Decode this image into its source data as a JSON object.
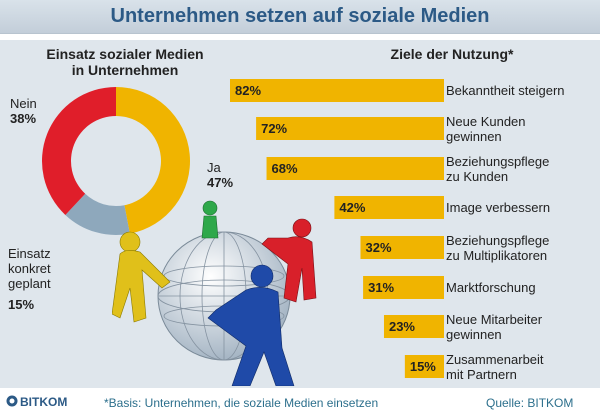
{
  "header": {
    "title": "Unternehmen setzen auf soziale Medien"
  },
  "colors": {
    "accent": "#f0b400",
    "red": "#e01e2a",
    "grey_blue": "#8ea8bc",
    "title": "#2c5a86",
    "footer_text": "#2c6f8c"
  },
  "chart_data": [
    {
      "type": "pie",
      "title_line1": "Einsatz sozialer Medien",
      "title_line2": "in Unternehmen",
      "slices": [
        {
          "label": "Ja",
          "value": 47,
          "value_text": "47%",
          "color": "#f0b400"
        },
        {
          "label_lines": [
            "Einsatz",
            "konkret",
            "geplant"
          ],
          "value": 15,
          "value_text": "15%",
          "color": "#8ea8bc"
        },
        {
          "label": "Nein",
          "value": 38,
          "value_text": "38%",
          "color": "#e01e2a"
        }
      ]
    },
    {
      "type": "bar",
      "orientation": "horizontal",
      "title": "Ziele der Nutzung*",
      "xlim": [
        0,
        100
      ],
      "bars": [
        {
          "value": 82,
          "value_text": "82%",
          "label_lines": [
            "Bekanntheit steigern"
          ]
        },
        {
          "value": 72,
          "value_text": "72%",
          "label_lines": [
            "Neue Kunden",
            "gewinnen"
          ]
        },
        {
          "value": 68,
          "value_text": "68%",
          "label_lines": [
            "Beziehungspflege",
            "zu Kunden"
          ]
        },
        {
          "value": 42,
          "value_text": "42%",
          "label_lines": [
            "Image verbessern"
          ]
        },
        {
          "value": 32,
          "value_text": "32%",
          "label_lines": [
            "Beziehungspflege",
            "zu Multiplikatoren"
          ]
        },
        {
          "value": 31,
          "value_text": "31%",
          "label_lines": [
            "Marktforschung"
          ]
        },
        {
          "value": 23,
          "value_text": "23%",
          "label_lines": [
            "Neue Mitarbeiter",
            "gewinnen"
          ]
        },
        {
          "value": 15,
          "value_text": "15%",
          "label_lines": [
            "Zusammenarbeit",
            "mit Partnern"
          ]
        }
      ]
    }
  ],
  "footer": {
    "brand": "BITKOM",
    "basis": "*Basis: Unternehmen, die soziale Medien einsetzen",
    "source": "Quelle: BITKOM"
  }
}
